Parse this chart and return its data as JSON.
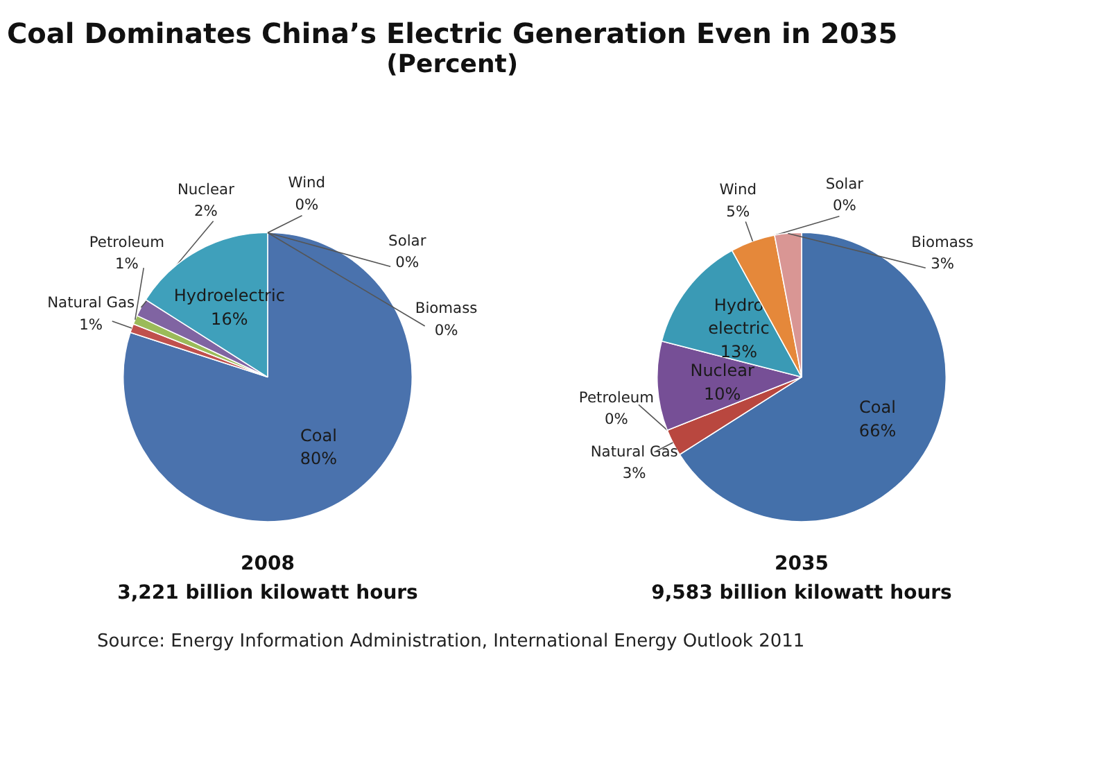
{
  "chart_data": [
    {
      "type": "pie",
      "title": "Coal Dominates China’s Electric Generation Even in 2035",
      "subtitle": "(Percent)",
      "xlabel": "2008\n3,221 billion kilowatt hours",
      "categories": [
        "Coal",
        "Natural Gas",
        "Petroleum",
        "Nuclear",
        "Hydroelectric",
        "Wind",
        "Solar",
        "Biomass"
      ],
      "values": [
        80,
        1,
        1,
        2,
        16,
        0,
        0,
        0
      ],
      "value_labels": [
        "80%",
        "1%",
        "1%",
        "2%",
        "16%",
        "0%",
        "0%",
        "0%"
      ],
      "colors": [
        "#4a72ad",
        "#c0504d",
        "#9bbb59",
        "#8064a2",
        "#3fa0bb",
        "#f79646",
        "#95b3d7",
        "#e8904a"
      ]
    },
    {
      "type": "pie",
      "xlabel": "2035\n9,583 billion kilowatt hours",
      "categories": [
        "Coal",
        "Natural Gas",
        "Petroleum",
        "Nuclear",
        "Hydro electric",
        "Wind",
        "Solar",
        "Biomass"
      ],
      "values": [
        66,
        3,
        0,
        10,
        13,
        5,
        0,
        3
      ],
      "value_labels": [
        "66%",
        "3%",
        "0%",
        "10%",
        "13%",
        "5%",
        "0%",
        "3%"
      ],
      "colors": [
        "#4470aa",
        "#b9473f",
        "#9bbb59",
        "#764f96",
        "#3a9ab5",
        "#e5883a",
        "#9dbbdc",
        "#d99694"
      ],
      "annotations": [
        "Source: Energy Information Administration, International Energy Outlook 2011"
      ]
    }
  ]
}
